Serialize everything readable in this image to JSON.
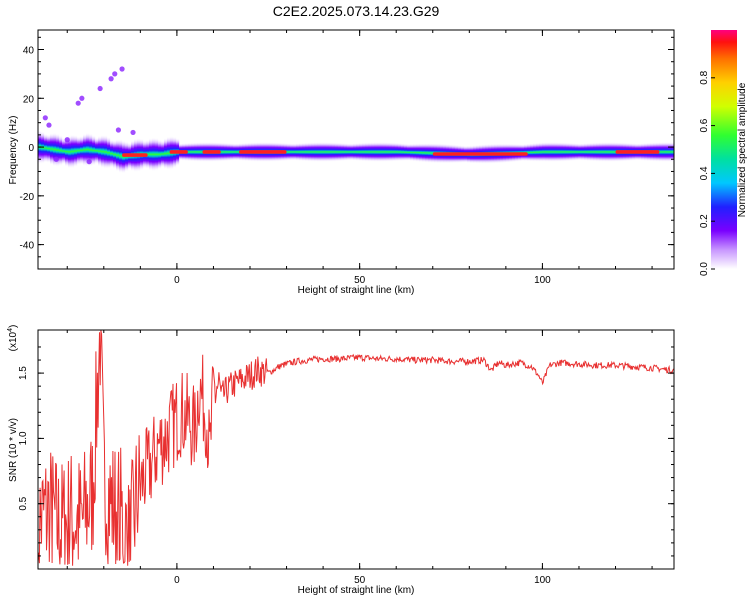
{
  "title": "C2E2.2025.073.14.23.G29",
  "chart_data": [
    {
      "type": "heatmap",
      "xlabel": "Height of straight line (km)",
      "ylabel": "Frequency (Hz)",
      "xlim": [
        -38,
        136
      ],
      "ylim": [
        -50,
        48
      ],
      "xticks": [
        0,
        50,
        100
      ],
      "yticks": [
        40,
        20,
        0,
        -20,
        -40
      ],
      "yticklabels": [
        "40",
        "20",
        "0",
        "-20",
        "-40"
      ],
      "colorbar": {
        "label": "Normalized spectral amplitude",
        "range": [
          0.0,
          1.0
        ],
        "ticks": [
          0.0,
          0.2,
          0.4,
          0.6,
          0.8
        ],
        "ticklabels": [
          "0.0",
          "0.2",
          "0.4",
          "0.6",
          "0.8"
        ]
      },
      "ridge": [
        {
          "x": -38,
          "y": 0
        },
        {
          "x": -34,
          "y": -1
        },
        {
          "x": -30,
          "y": -2
        },
        {
          "x": -25,
          "y": -1
        },
        {
          "x": -20,
          "y": -2
        },
        {
          "x": -15,
          "y": -4
        },
        {
          "x": -10,
          "y": -3
        },
        {
          "x": -5,
          "y": -3
        },
        {
          "x": 0,
          "y": -2
        },
        {
          "x": 10,
          "y": -2
        },
        {
          "x": 20,
          "y": -2
        },
        {
          "x": 40,
          "y": -2
        },
        {
          "x": 60,
          "y": -2
        },
        {
          "x": 80,
          "y": -3
        },
        {
          "x": 100,
          "y": -2
        },
        {
          "x": 120,
          "y": -2
        },
        {
          "x": 136,
          "y": -2
        }
      ]
    },
    {
      "type": "line",
      "xlabel": "Height of straight line (km)",
      "ylabel": "SNR (10 * v/v)",
      "multiplier": "(x10",
      "multiplier_exp": "4",
      "multiplier_close": ")",
      "xlim": [
        -38,
        136
      ],
      "ylim": [
        0,
        1.83
      ],
      "xticks": [
        0,
        50,
        100
      ],
      "yticks": [
        0.5,
        1.0,
        1.5
      ],
      "yticklabels": [
        "0.5",
        "1.0",
        "1.5"
      ],
      "series": [
        {
          "color": "#e83030",
          "x": [
            -38,
            -35,
            -32,
            -29,
            -26,
            -23,
            -21,
            -20,
            -18,
            -15,
            -13,
            -11,
            -9,
            -7,
            -5,
            -3,
            -1,
            1,
            3,
            5,
            6,
            7,
            8,
            9,
            10,
            11,
            12,
            14,
            16,
            18,
            20,
            22,
            25,
            28,
            30,
            33,
            36,
            40,
            45,
            50,
            55,
            60,
            65,
            70,
            75,
            80,
            84,
            86,
            88,
            90,
            94,
            97,
            99,
            100,
            102,
            105,
            110,
            115,
            120,
            125,
            130,
            133,
            136
          ],
          "y": [
            0.35,
            0.45,
            0.3,
            0.4,
            0.35,
            0.6,
            1.82,
            0.7,
            0.5,
            0.4,
            0.15,
            0.55,
            0.7,
            0.8,
            0.95,
            1.0,
            1.1,
            1.2,
            1.15,
            1.05,
            1.4,
            1.3,
            1.2,
            0.85,
            1.35,
            1.4,
            1.3,
            1.38,
            1.42,
            1.45,
            1.48,
            1.52,
            1.5,
            1.55,
            1.57,
            1.59,
            1.6,
            1.61,
            1.61,
            1.62,
            1.61,
            1.61,
            1.6,
            1.6,
            1.59,
            1.59,
            1.6,
            1.52,
            1.58,
            1.56,
            1.58,
            1.55,
            1.48,
            1.42,
            1.56,
            1.58,
            1.57,
            1.56,
            1.56,
            1.55,
            1.54,
            1.53,
            1.52
          ]
        }
      ]
    }
  ]
}
